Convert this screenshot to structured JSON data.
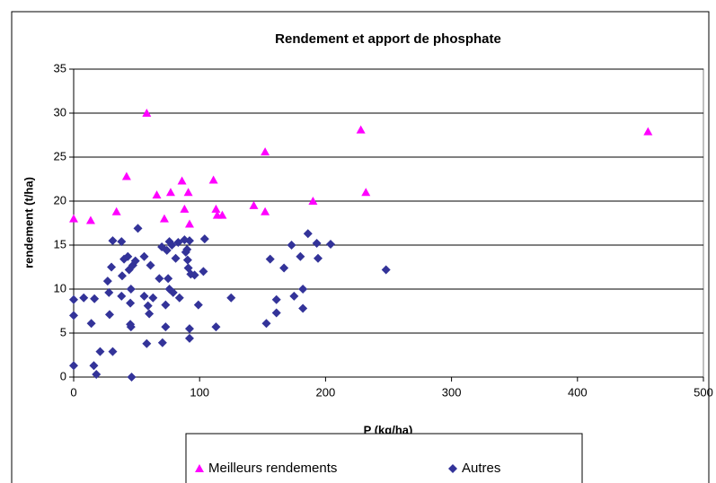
{
  "chart_data": {
    "type": "scatter",
    "title": "Rendement et apport de phosphate",
    "x_label": "P (kg/ha)",
    "y_label": "rendement (t/ha)",
    "xlim": [
      0,
      500
    ],
    "xticks": [
      0,
      100,
      200,
      300,
      400,
      500
    ],
    "ylim": [
      0,
      35
    ],
    "yticks": [
      0,
      5,
      10,
      15,
      20,
      25,
      30,
      35
    ],
    "grid": true,
    "legend": "bottom",
    "series": [
      {
        "name": "Meilleurs rendements",
        "color": "#ff00ff",
        "marker": "triangle",
        "x": [
          0,
          13.5,
          34,
          42,
          58,
          66,
          72,
          77,
          86,
          88,
          91,
          92,
          111,
          113,
          114,
          118,
          143,
          152,
          152,
          190,
          228,
          232,
          456
        ],
        "y": [
          18,
          17.8,
          18.8,
          22.8,
          30,
          20.7,
          18,
          21,
          22.3,
          19.1,
          21,
          17.4,
          22.4,
          19.1,
          18.4,
          18.4,
          19.5,
          18.8,
          25.6,
          20,
          28.1,
          21,
          27.9
        ]
      },
      {
        "name": "Autres",
        "color": "#333399",
        "marker": "diamond",
        "x": [
          0,
          0,
          0,
          8,
          14,
          16,
          16.5,
          18,
          21,
          27,
          28,
          28.5,
          30,
          31,
          31,
          38,
          38,
          38.5,
          40,
          43,
          44,
          45,
          45,
          45.5,
          45.5,
          46,
          47,
          49,
          51,
          56,
          56,
          59,
          58,
          61,
          60,
          63,
          68,
          70,
          70.5,
          73,
          73,
          74,
          75,
          76,
          76,
          78,
          79,
          81,
          83,
          84,
          88,
          89,
          90,
          90.5,
          91,
          92,
          92,
          92,
          93,
          96,
          99,
          103,
          104,
          113,
          125,
          153,
          156,
          161,
          161,
          167,
          173,
          175,
          180,
          182,
          182,
          186,
          193,
          194,
          204,
          248
        ],
        "y": [
          7,
          8.8,
          1.3,
          9,
          6.1,
          1.3,
          8.9,
          0.3,
          2.9,
          10.9,
          9.6,
          7.1,
          12.5,
          15.5,
          2.9,
          15.4,
          9.2,
          11.5,
          13.4,
          13.7,
          12.2,
          8.4,
          6,
          5.7,
          10,
          0,
          12.7,
          13.2,
          16.9,
          13.7,
          9.2,
          8.1,
          3.8,
          12.7,
          7.2,
          9,
          11.2,
          14.8,
          3.9,
          5.7,
          8.2,
          14.4,
          11.2,
          15.4,
          10,
          15,
          9.6,
          13.5,
          15.3,
          9,
          15.6,
          14.2,
          14.5,
          13.3,
          12.4,
          15.5,
          5.5,
          4.4,
          11.7,
          11.6,
          8.2,
          12,
          15.7,
          5.7,
          9,
          6.1,
          13.4,
          8.8,
          7.3,
          12.4,
          15,
          9.2,
          13.7,
          10,
          7.8,
          16.3,
          15.2,
          13.5,
          15.1,
          12.2
        ]
      }
    ]
  }
}
